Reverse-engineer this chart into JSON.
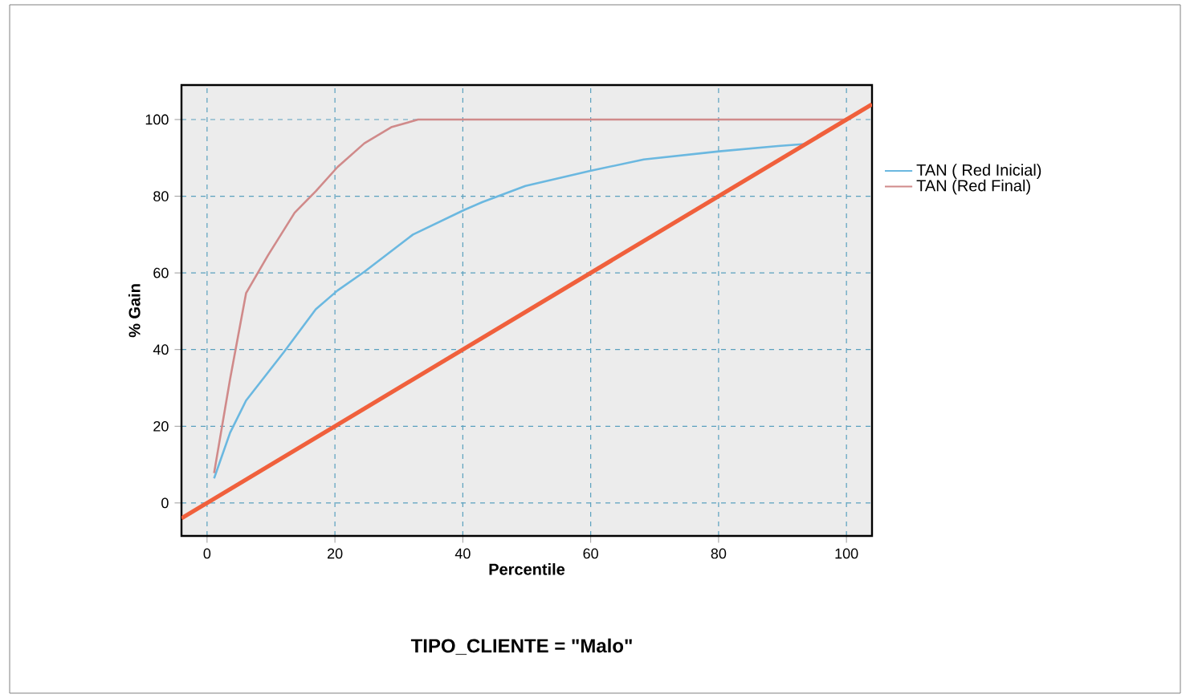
{
  "chart_data": {
    "type": "line",
    "xlabel": "Percentile",
    "ylabel": "% Gain",
    "annotations": [
      "TIPO_CLIENTE = \"Malo\""
    ],
    "xlim": [
      -4,
      104
    ],
    "ylim": [
      -8.6,
      109
    ],
    "xticks": [
      0,
      20,
      40,
      60,
      80,
      100
    ],
    "yticks": [
      0,
      20,
      40,
      60,
      80,
      100
    ],
    "grid": true,
    "legend": "right",
    "series": [
      {
        "name": "TAN ( Red Inicial)",
        "color": "#6bb8e0",
        "x": [
          1.1,
          3.6,
          6.1,
          12,
          17,
          20.4,
          24.6,
          32.2,
          40.2,
          43.1,
          49.8,
          59.9,
          68.3,
          80.1,
          89.3,
          93.5,
          100
        ],
        "values": [
          6.4,
          18.3,
          26.7,
          39.3,
          50.5,
          55.4,
          60.3,
          70,
          76.4,
          78.5,
          82.7,
          86.6,
          89.6,
          91.7,
          93.1,
          93.6,
          100
        ]
      },
      {
        "name": "TAN  (Red Final)",
        "color": "#d08a8a",
        "x": [
          1.1,
          3.6,
          6.1,
          9.5,
          13.7,
          17,
          20.4,
          24.6,
          28.8,
          33,
          100
        ],
        "values": [
          7.8,
          32.3,
          54.7,
          64.5,
          75.7,
          81.3,
          87.6,
          93.8,
          98,
          100,
          100
        ]
      },
      {
        "color": "#f0603c",
        "x": [
          -4,
          104
        ],
        "values": [
          -4,
          104
        ]
      }
    ]
  }
}
